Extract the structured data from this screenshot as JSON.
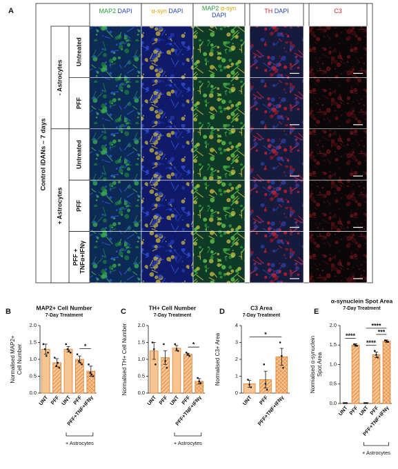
{
  "panel_a": {
    "label": "A",
    "title": "Control iDANs – 7 days",
    "columns": [
      [
        [
          {
            "text": "MAP2",
            "color": "#2a9d3a"
          },
          {
            "text": "DAPI",
            "color": "#2344c4"
          }
        ]
      ],
      [
        [
          {
            "text": "α-syn",
            "color": "#e0a400"
          },
          {
            "text": "DAPI",
            "color": "#2344c4"
          }
        ]
      ],
      [
        [
          {
            "text": "MAP2",
            "color": "#2a9d3a"
          },
          {
            "text": "α-syn",
            "color": "#e0a400"
          }
        ],
        [
          {
            "text": "DAPI",
            "color": "#2344c4"
          }
        ]
      ],
      [
        [
          {
            "text": "TH",
            "color": "#d0202a"
          },
          {
            "text": "DAPI",
            "color": "#2344c4"
          }
        ]
      ],
      [
        [
          {
            "text": "C3",
            "color": "#d0202a"
          }
        ]
      ]
    ],
    "groups": [
      "- Astrocytes",
      "+ Astrocytes"
    ],
    "rows": [
      [
        "Untreated"
      ],
      [
        "PFF"
      ],
      [
        "Untreated"
      ],
      [
        "PFF"
      ],
      [
        "PFF +",
        "TNFα+IFNγ"
      ]
    ]
  },
  "chart_data": [
    {
      "label": "B",
      "type": "bar",
      "title": "MAP2+ Cell Number",
      "subtitle": "7-Day Treatment",
      "ylabel": [
        "Normalised MAP2+",
        "Cell Number"
      ],
      "categories": [
        "UNT",
        "PFF",
        "UNT",
        "PFF",
        "PFF+TNF+IFNγ"
      ],
      "values": [
        1.3,
        0.9,
        1.3,
        1.0,
        0.65
      ],
      "errors": [
        0.15,
        0.12,
        0.08,
        0.1,
        0.15
      ],
      "points": [
        [
          1.45,
          1.3,
          1.1,
          1.2
        ],
        [
          1.05,
          0.8,
          0.9,
          0.75
        ],
        [
          1.45,
          1.3,
          1.25,
          1.2
        ],
        [
          1.15,
          0.95,
          0.9,
          0.85
        ],
        [
          0.85,
          0.6,
          0.55,
          0.5
        ]
      ],
      "patterns": [
        "solid",
        "hatch",
        "solid",
        "hatch",
        "cross"
      ],
      "color": "#f7c592",
      "edge_color": "#e07b2a",
      "ylim": [
        0,
        2
      ],
      "yticks": [
        {
          "value": 0,
          "label": "0.0"
        },
        {
          "value": 0.5,
          "label": "0.5"
        },
        {
          "value": 1,
          "label": "1.0"
        },
        {
          "value": 1.5,
          "label": "1.5"
        },
        {
          "value": 2,
          "label": "2.0"
        }
      ],
      "significance": [
        {
          "from": 3,
          "to": 4,
          "label": "*"
        }
      ],
      "group": {
        "label": "+ Astrocytes",
        "from": 2,
        "to": 4
      }
    },
    {
      "label": "C",
      "type": "bar",
      "title": "TH+ Cell Number",
      "subtitle": "7-Day Treatment",
      "ylabel": [
        "Normalised TH+ Cell Number"
      ],
      "categories": [
        "UNT",
        "PFF",
        "UNT",
        "PFF",
        "PFF+TNF+IFNγ"
      ],
      "values": [
        1.25,
        1.05,
        1.33,
        1.15,
        0.35
      ],
      "errors": [
        0.25,
        0.2,
        0.08,
        0.03,
        0.08
      ],
      "points": [
        [
          1.5,
          1.3,
          0.85
        ],
        [
          1.45,
          0.95,
          0.75
        ],
        [
          1.45,
          1.3,
          1.25
        ],
        [
          1.2,
          1.15,
          1.1
        ],
        [
          0.45,
          0.35,
          0.3
        ]
      ],
      "patterns": [
        "solid",
        "hatch",
        "solid",
        "hatch",
        "cross"
      ],
      "color": "#f7c592",
      "edge_color": "#e07b2a",
      "ylim": [
        0,
        2
      ],
      "yticks": [
        {
          "value": 0,
          "label": "0.0"
        },
        {
          "value": 0.5,
          "label": "0.5"
        },
        {
          "value": 1,
          "label": "1.0"
        },
        {
          "value": 1.5,
          "label": "1.5"
        },
        {
          "value": 2,
          "label": "2.0"
        }
      ],
      "significance": [
        {
          "from": 3,
          "to": 4,
          "label": "*"
        }
      ],
      "group": {
        "label": "+ Astrocytes",
        "from": 2,
        "to": 4
      }
    },
    {
      "label": "D",
      "type": "bar",
      "title": "C3 Area",
      "subtitle": "7-Day Treatment",
      "ylabel": [
        "Normalised C3+ Area"
      ],
      "categories": [
        "UNT",
        "PFF",
        "PFF+TNF+IFNγ"
      ],
      "values": [
        0.55,
        0.8,
        2.15
      ],
      "errors": [
        0.2,
        0.5,
        0.5
      ],
      "points": [
        [
          0.8,
          0.5,
          0.35
        ],
        [
          1.7,
          0.55,
          0.2
        ],
        [
          3.0,
          2.2,
          1.5
        ]
      ],
      "patterns": [
        "solid",
        "hatch",
        "cross"
      ],
      "color": "#f7c592",
      "edge_color": "#e07b2a",
      "ylim": [
        0,
        4
      ],
      "yticks": [
        0,
        1,
        2,
        3,
        4
      ],
      "significance": [
        {
          "from": 0,
          "to": 2,
          "label": "*"
        }
      ]
    },
    {
      "label": "E",
      "type": "bar",
      "title": "α-synuclein Spot Area",
      "subtitle": "7-Day Treatment",
      "ylabel": [
        "Normalised α-synuclein",
        "Spot Area"
      ],
      "categories": [
        "UNT",
        "PFF",
        "UNT",
        "PFF",
        "PFF+TNF+IFNγ"
      ],
      "values": [
        0.01,
        1.5,
        0.01,
        1.25,
        1.6
      ],
      "errors": [
        0,
        0.03,
        0,
        0.07,
        0.03
      ],
      "points": [
        [
          0.01,
          0.01,
          0.01
        ],
        [
          1.52,
          1.5,
          1.48
        ],
        [
          0.01,
          0.01,
          0.01
        ],
        [
          1.35,
          1.25,
          1.18
        ],
        [
          1.62,
          1.6,
          1.58
        ]
      ],
      "patterns": [
        "solid",
        "hatch",
        "solid",
        "hatch",
        "cross"
      ],
      "color": "#f7c592",
      "edge_color": "#e07b2a",
      "ylim": [
        0,
        2
      ],
      "yticks": [
        {
          "value": 0,
          "label": "0.0"
        },
        {
          "value": 0.5,
          "label": "0.5"
        },
        {
          "value": 1,
          "label": "1.0"
        },
        {
          "value": 1.5,
          "label": "1.5"
        },
        {
          "value": 2,
          "label": "2.0"
        }
      ],
      "significance": [
        {
          "from": 0,
          "to": 1,
          "label": "****"
        },
        {
          "from": 2,
          "to": 3,
          "label": "****"
        },
        {
          "from": 3,
          "to": 4,
          "label": "***"
        },
        {
          "from": 2,
          "to": 4,
          "label": "****"
        }
      ],
      "group": {
        "label": "+ Astrocytes",
        "from": 2,
        "to": 4
      }
    }
  ]
}
